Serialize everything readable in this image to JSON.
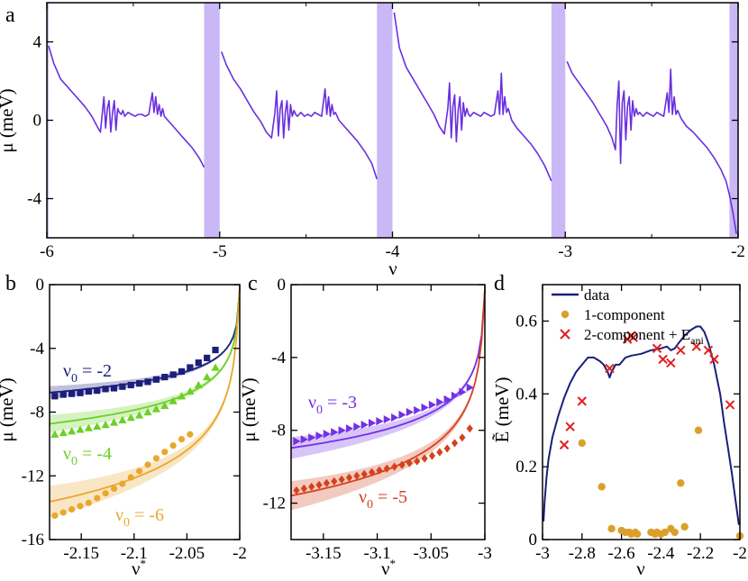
{
  "colors": {
    "a_trace": "#6a2fe0",
    "a_band": "#c9b8f5",
    "nu2": "#1b1e7a",
    "nu4": "#6bd126",
    "nu6": "#eba72d",
    "nu3": "#7330e6",
    "nu5": "#d4421c",
    "d_line": "#1b1e7a",
    "d_dot": "#dba02c",
    "d_cross": "#e02020"
  },
  "chart_data": [
    {
      "id": "a",
      "type": "line",
      "panel_label": "a",
      "xlabel": "ν",
      "ylabel": "μ (meV)",
      "xlim": [
        -6,
        -2
      ],
      "ylim": [
        -6,
        6
      ],
      "xticks": [
        -6,
        -5,
        -4,
        -3,
        -2
      ],
      "xtick_labels": [
        "-6",
        "-5",
        "-4",
        "-3",
        "-2"
      ],
      "yticks": [
        -4,
        0,
        4
      ],
      "ytick_labels": [
        "-4",
        "0",
        "4"
      ],
      "bands": [
        [
          -6.02,
          -5.995
        ],
        [
          -5.09,
          -5.0
        ],
        [
          -4.09,
          -4.0
        ],
        [
          -3.08,
          -3.0
        ],
        [
          -2.05,
          -2.0
        ]
      ],
      "segments": [
        {
          "x": [
            -5.99,
            -5.96,
            -5.92,
            -5.88,
            -5.83,
            -5.78,
            -5.74,
            -5.71,
            -5.69,
            -5.68,
            -5.67,
            -5.66,
            -5.65,
            -5.64,
            -5.63,
            -5.62,
            -5.61,
            -5.6,
            -5.59,
            -5.58,
            -5.57,
            -5.56,
            -5.55,
            -5.54,
            -5.53,
            -5.51,
            -5.49,
            -5.47,
            -5.45,
            -5.43,
            -5.41,
            -5.39,
            -5.38,
            -5.37,
            -5.36,
            -5.35,
            -5.34,
            -5.33,
            -5.32,
            -5.3,
            -5.27,
            -5.24,
            -5.2,
            -5.16,
            -5.12,
            -5.09
          ],
          "y": [
            3.8,
            2.9,
            2.1,
            1.7,
            1.2,
            0.7,
            0.2,
            -0.3,
            -0.6,
            0.3,
            1.2,
            -0.4,
            0.6,
            1.0,
            -0.6,
            0.4,
            1.0,
            -0.5,
            0.6,
            0.4,
            0.3,
            0.5,
            0.2,
            0.3,
            0.4,
            0.3,
            0.2,
            0.3,
            0.3,
            0.2,
            0.3,
            1.4,
            0.4,
            1.2,
            0.3,
            0.8,
            0.2,
            0.6,
            0.2,
            0.0,
            -0.3,
            -0.6,
            -1.0,
            -1.4,
            -1.9,
            -2.4
          ]
        },
        {
          "x": [
            -4.99,
            -4.96,
            -4.92,
            -4.88,
            -4.84,
            -4.8,
            -4.76,
            -4.73,
            -4.7,
            -4.68,
            -4.67,
            -4.66,
            -4.65,
            -4.64,
            -4.63,
            -4.62,
            -4.61,
            -4.6,
            -4.59,
            -4.58,
            -4.57,
            -4.56,
            -4.55,
            -4.53,
            -4.51,
            -4.49,
            -4.47,
            -4.45,
            -4.43,
            -4.41,
            -4.39,
            -4.38,
            -4.37,
            -4.36,
            -4.35,
            -4.34,
            -4.33,
            -4.31,
            -4.28,
            -4.24,
            -4.2,
            -4.16,
            -4.12,
            -4.09
          ],
          "y": [
            3.5,
            2.8,
            2.1,
            1.6,
            1.0,
            0.4,
            -0.1,
            -0.6,
            -0.9,
            0.4,
            1.5,
            -0.8,
            0.6,
            1.0,
            -0.9,
            0.4,
            1.0,
            -0.5,
            0.8,
            0.2,
            0.5,
            0.3,
            0.2,
            0.4,
            0.2,
            0.3,
            0.2,
            0.4,
            0.3,
            0.2,
            1.6,
            0.3,
            1.2,
            0.2,
            0.8,
            0.3,
            0.4,
            0.0,
            -0.3,
            -0.7,
            -1.1,
            -1.6,
            -2.2,
            -3.0
          ]
        },
        {
          "x": [
            -3.99,
            -3.96,
            -3.92,
            -3.88,
            -3.84,
            -3.8,
            -3.76,
            -3.73,
            -3.7,
            -3.68,
            -3.67,
            -3.66,
            -3.65,
            -3.64,
            -3.63,
            -3.62,
            -3.61,
            -3.6,
            -3.59,
            -3.58,
            -3.57,
            -3.56,
            -3.55,
            -3.53,
            -3.51,
            -3.49,
            -3.47,
            -3.45,
            -3.43,
            -3.41,
            -3.39,
            -3.38,
            -3.37,
            -3.36,
            -3.35,
            -3.34,
            -3.33,
            -3.31,
            -3.28,
            -3.24,
            -3.2,
            -3.16,
            -3.12,
            -3.08
          ],
          "y": [
            5.5,
            3.7,
            2.7,
            2.1,
            1.5,
            0.9,
            0.3,
            -0.3,
            -0.7,
            0.6,
            1.9,
            -0.9,
            0.7,
            1.3,
            -1.1,
            0.5,
            1.2,
            -0.5,
            0.9,
            0.2,
            0.6,
            0.3,
            0.2,
            0.4,
            0.3,
            0.2,
            0.4,
            0.3,
            0.2,
            0.3,
            1.5,
            0.3,
            2.4,
            0.3,
            1.2,
            0.4,
            0.6,
            0.0,
            -0.4,
            -0.8,
            -1.2,
            -1.7,
            -2.3,
            -3.1
          ]
        },
        {
          "x": [
            -2.99,
            -2.96,
            -2.92,
            -2.88,
            -2.84,
            -2.8,
            -2.76,
            -2.73,
            -2.71,
            -2.7,
            -2.69,
            -2.68,
            -2.67,
            -2.66,
            -2.65,
            -2.64,
            -2.63,
            -2.62,
            -2.61,
            -2.6,
            -2.59,
            -2.58,
            -2.57,
            -2.55,
            -2.53,
            -2.51,
            -2.49,
            -2.47,
            -2.45,
            -2.43,
            -2.41,
            -2.4,
            -2.39,
            -2.38,
            -2.37,
            -2.36,
            -2.35,
            -2.33,
            -2.3,
            -2.26,
            -2.22,
            -2.18,
            -2.14,
            -2.1,
            -2.07,
            -2.05,
            -2.03,
            -2.01
          ],
          "y": [
            3.0,
            2.4,
            1.9,
            1.4,
            0.9,
            0.3,
            -0.3,
            -0.9,
            -1.5,
            0.8,
            2.0,
            -2.2,
            0.9,
            1.5,
            -1.0,
            0.7,
            1.2,
            -0.5,
            1.0,
            0.2,
            0.6,
            0.3,
            0.4,
            0.2,
            0.4,
            0.3,
            0.2,
            0.4,
            0.3,
            0.2,
            1.4,
            0.4,
            2.6,
            0.3,
            1.2,
            0.3,
            0.5,
            0.1,
            -0.3,
            -0.6,
            -1.0,
            -1.4,
            -1.9,
            -2.5,
            -3.1,
            -3.8,
            -4.7,
            -5.8
          ]
        }
      ]
    },
    {
      "id": "b",
      "type": "scatter",
      "panel_label": "b",
      "xlabel": "ν*",
      "ylabel": "μ (meV)",
      "xlim": [
        -2.18,
        -2.0
      ],
      "ylim": [
        -16,
        0
      ],
      "xticks": [
        -2.15,
        -2.1,
        -2.05,
        -2.0
      ],
      "xtick_labels": [
        "-2.15",
        "-2.1",
        "-2.05",
        "-2"
      ],
      "yticks": [
        -16,
        -12,
        -8,
        -4,
        0
      ],
      "ytick_labels": [
        "-16",
        "-12",
        "-8",
        "-4",
        "0"
      ],
      "series": [
        {
          "name": "ν₀ = -2",
          "nu0": "-2",
          "color_key": "nu2",
          "marker": "square",
          "points_x": [
            -2.175,
            -2.167,
            -2.159,
            -2.151,
            -2.143,
            -2.135,
            -2.127,
            -2.119,
            -2.111,
            -2.103,
            -2.095,
            -2.087,
            -2.079,
            -2.071,
            -2.063,
            -2.055,
            -2.047,
            -2.039,
            -2.031,
            -2.023
          ],
          "points_y": [
            -7.0,
            -6.9,
            -6.85,
            -6.8,
            -6.7,
            -6.65,
            -6.55,
            -6.5,
            -6.4,
            -6.3,
            -6.2,
            -6.1,
            -5.95,
            -5.8,
            -5.65,
            -5.45,
            -5.2,
            -4.9,
            -4.6,
            -4.1
          ],
          "fit_A": 1.22,
          "band_w": 0.4
        },
        {
          "name": "ν₀ = -4",
          "nu0": "-4",
          "color_key": "nu4",
          "marker": "triangle",
          "points_x": [
            -2.175,
            -2.167,
            -2.159,
            -2.151,
            -2.143,
            -2.135,
            -2.127,
            -2.119,
            -2.111,
            -2.103,
            -2.095,
            -2.087,
            -2.079,
            -2.071,
            -2.063,
            -2.055,
            -2.047,
            -2.039,
            -2.031,
            -2.023
          ],
          "points_y": [
            -9.4,
            -9.3,
            -9.2,
            -9.1,
            -9.0,
            -8.9,
            -8.8,
            -8.65,
            -8.5,
            -8.35,
            -8.2,
            -8.0,
            -7.8,
            -7.6,
            -7.3,
            -7.0,
            -6.7,
            -6.3,
            -5.8,
            -5.2
          ],
          "fit_A": 1.72,
          "band_w": 0.55
        },
        {
          "name": "ν₀ = -6",
          "nu0": "-6",
          "color_key": "nu6",
          "marker": "circle",
          "points_x": [
            -2.175,
            -2.167,
            -2.159,
            -2.151,
            -2.143,
            -2.135,
            -2.127,
            -2.119,
            -2.111,
            -2.103,
            -2.095,
            -2.087,
            -2.079,
            -2.071,
            -2.063,
            -2.055,
            -2.047
          ],
          "points_y": [
            -14.5,
            -14.3,
            -14.1,
            -13.9,
            -13.7,
            -13.4,
            -13.1,
            -12.8,
            -12.5,
            -12.1,
            -11.7,
            -11.3,
            -10.9,
            -10.5,
            -10.1,
            -9.7,
            -9.4
          ],
          "fit_A": 2.97,
          "band_w": 1.0
        }
      ]
    },
    {
      "id": "c",
      "type": "scatter",
      "panel_label": "c",
      "xlabel": "ν*",
      "ylabel": "μ (meV)",
      "xlim": [
        -3.18,
        -3.0
      ],
      "ylim": [
        -14,
        0
      ],
      "xticks": [
        -3.15,
        -3.1,
        -3.05,
        -3.0
      ],
      "xtick_labels": [
        "-3.15",
        "-3.1",
        "-3.05",
        "-3"
      ],
      "yticks": [
        -12,
        -8,
        -4,
        0
      ],
      "ytick_labels": [
        "-12",
        "-8",
        "-4",
        "0"
      ],
      "series": [
        {
          "name": "ν₀ = -3",
          "nu0": "-3",
          "color_key": "nu3",
          "marker": "triangle-right",
          "points_x": [
            -3.175,
            -3.168,
            -3.161,
            -3.154,
            -3.147,
            -3.14,
            -3.133,
            -3.126,
            -3.119,
            -3.112,
            -3.105,
            -3.098,
            -3.091,
            -3.084,
            -3.077,
            -3.07,
            -3.063,
            -3.056,
            -3.049,
            -3.042,
            -3.035,
            -3.028,
            -3.021,
            -3.014
          ],
          "points_y": [
            -8.6,
            -8.5,
            -8.4,
            -8.3,
            -8.2,
            -8.1,
            -8.0,
            -7.9,
            -7.8,
            -7.7,
            -7.6,
            -7.5,
            -7.4,
            -7.3,
            -7.15,
            -7.0,
            -6.9,
            -6.75,
            -6.6,
            -6.45,
            -6.3,
            -6.1,
            -5.9,
            -5.65
          ],
          "fit_A": 1.78,
          "band_w": 0.6
        },
        {
          "name": "ν₀ = -5",
          "nu0": "-5",
          "color_key": "nu5",
          "marker": "diamond",
          "points_x": [
            -3.175,
            -3.168,
            -3.161,
            -3.154,
            -3.147,
            -3.14,
            -3.133,
            -3.126,
            -3.119,
            -3.112,
            -3.105,
            -3.098,
            -3.091,
            -3.084,
            -3.077,
            -3.07,
            -3.063,
            -3.056,
            -3.049,
            -3.042,
            -3.035,
            -3.028,
            -3.021,
            -3.014
          ],
          "points_y": [
            -11.3,
            -11.2,
            -11.1,
            -11.0,
            -10.9,
            -10.8,
            -10.7,
            -10.6,
            -10.5,
            -10.4,
            -10.3,
            -10.2,
            -10.1,
            -10.0,
            -9.9,
            -9.8,
            -9.7,
            -9.55,
            -9.4,
            -9.2,
            -9.0,
            -8.7,
            -8.4,
            -7.9
          ],
          "fit_A": 2.45,
          "band_w": 0.8
        }
      ]
    },
    {
      "id": "d",
      "type": "scatter",
      "panel_label": "d",
      "xlabel": "ν",
      "ylabel": "Ẽ (meV)",
      "xlim": [
        -3,
        -2
      ],
      "ylim": [
        0,
        0.7
      ],
      "xticks": [
        -3,
        -2.8,
        -2.6,
        -2.4,
        -2.2,
        -2
      ],
      "xtick_labels": [
        "-3",
        "-2.8",
        "-2.6",
        "-2.4",
        "-2.2",
        "-2"
      ],
      "yticks": [
        0,
        0.2,
        0.4,
        0.6
      ],
      "ytick_labels": [
        "0",
        "0.2",
        "0.4",
        "0.6"
      ],
      "legend": {
        "position": "top",
        "entries": [
          "data",
          "1-component",
          "2-component + E",
          "ani"
        ]
      },
      "data_line": {
        "x": [
          -2.995,
          -2.99,
          -2.98,
          -2.97,
          -2.95,
          -2.92,
          -2.89,
          -2.86,
          -2.83,
          -2.8,
          -2.77,
          -2.74,
          -2.71,
          -2.69,
          -2.67,
          -2.66,
          -2.65,
          -2.63,
          -2.61,
          -2.58,
          -2.55,
          -2.5,
          -2.45,
          -2.4,
          -2.37,
          -2.35,
          -2.33,
          -2.31,
          -2.28,
          -2.25,
          -2.22,
          -2.2,
          -2.18,
          -2.16,
          -2.13,
          -2.1,
          -2.08,
          -2.06,
          -2.04,
          -2.02,
          -2.005
        ],
        "y": [
          0.05,
          0.1,
          0.17,
          0.22,
          0.28,
          0.34,
          0.39,
          0.43,
          0.46,
          0.48,
          0.5,
          0.5,
          0.49,
          0.48,
          0.46,
          0.445,
          0.46,
          0.48,
          0.48,
          0.5,
          0.505,
          0.51,
          0.52,
          0.525,
          0.53,
          0.52,
          0.525,
          0.54,
          0.56,
          0.575,
          0.585,
          0.585,
          0.57,
          0.54,
          0.48,
          0.4,
          0.32,
          0.25,
          0.18,
          0.1,
          0.04
        ]
      },
      "one_component": {
        "x": [
          -2.8,
          -2.7,
          -2.65,
          -2.6,
          -2.58,
          -2.56,
          -2.55,
          -2.53,
          -2.52,
          -2.45,
          -2.43,
          -2.42,
          -2.4,
          -2.38,
          -2.35,
          -2.33,
          -2.3,
          -2.28,
          -2.21,
          -2.0
        ],
        "y": [
          0.265,
          0.145,
          0.03,
          0.025,
          0.02,
          0.02,
          0.015,
          0.02,
          0.015,
          0.02,
          0.015,
          0.02,
          0.015,
          0.02,
          0.03,
          0.02,
          0.155,
          0.035,
          0.3,
          0.01
        ]
      },
      "two_component": {
        "x": [
          -2.89,
          -2.86,
          -2.8,
          -2.66,
          -2.57,
          -2.55,
          -2.54,
          -2.42,
          -2.39,
          -2.35,
          -2.3,
          -2.22,
          -2.16,
          -2.13,
          -2.05
        ],
        "y": [
          0.26,
          0.31,
          0.38,
          0.47,
          0.55,
          0.56,
          0.555,
          0.525,
          0.495,
          0.485,
          0.52,
          0.53,
          0.52,
          0.495,
          0.37
        ]
      }
    }
  ]
}
